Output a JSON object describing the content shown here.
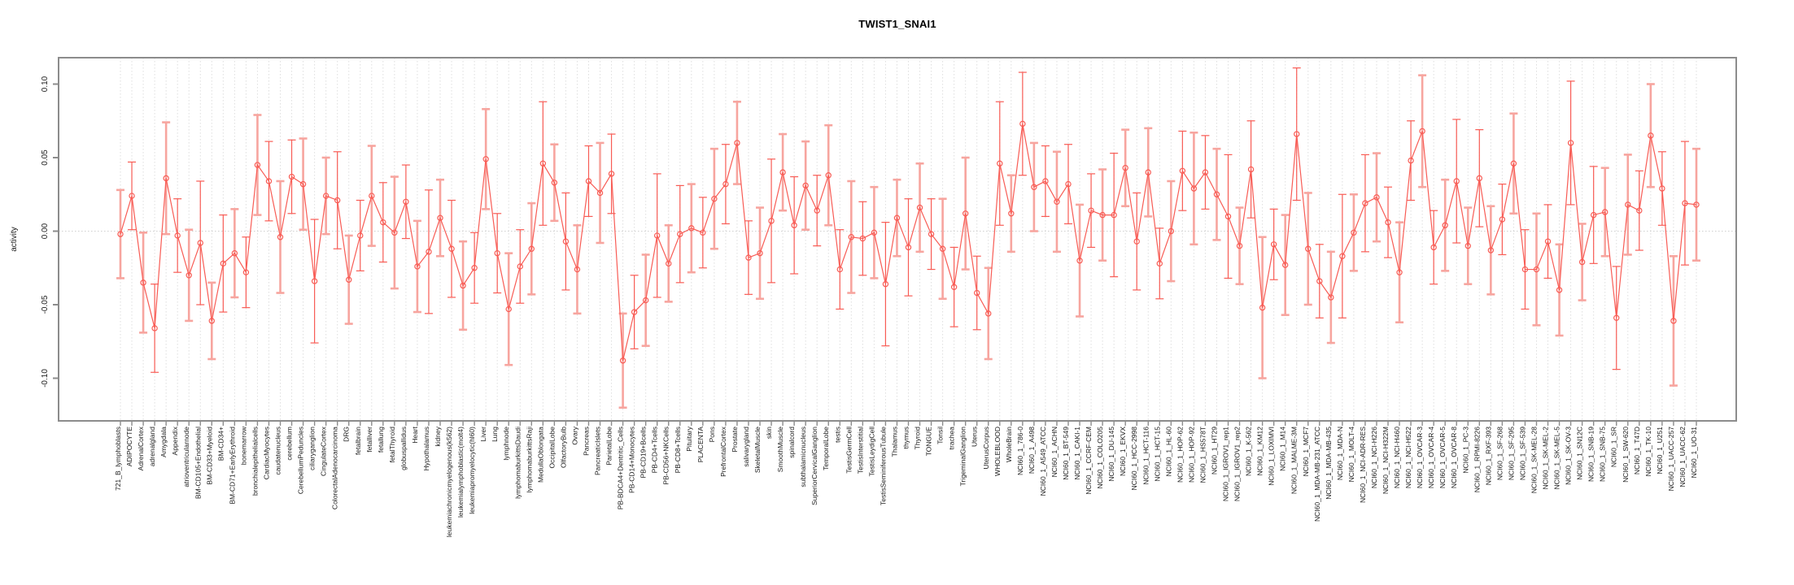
{
  "title": "TWIST1_SNAI1",
  "y_axis": {
    "label": "activity",
    "tick_labels": [
      "0.10",
      "0.05",
      "0.00",
      "-0.05",
      "-0.10"
    ],
    "ticks": [
      0.1,
      0.05,
      0.0,
      -0.05,
      -0.1
    ]
  },
  "chart_data": {
    "type": "line",
    "title": "TWIST1_SNAI1",
    "xlabel": "",
    "ylabel": "activity",
    "ylim": [
      -0.125,
      0.115
    ],
    "legend_position": "none",
    "grid": "vertical dashed gridline per category; dotted horizontal line at 0",
    "point_style": "open circles with error bars",
    "colors": {
      "series": "#f85c55",
      "error_bar_pale": "#f7a59f",
      "grid": "#dedede",
      "zero_line": "#cfcfcf",
      "frame": "#8c8c8c",
      "text": "#1a1a1a"
    },
    "categories": [
      "721_B_lymphoblasts",
      "ADIPOCYTE",
      "AdrenalCortex",
      "adrenalgland",
      "Amygdala",
      "Appendix",
      "atrioventricularnode",
      "BM-CD105+Endothelial",
      "BM-CD33+Myeloid",
      "BM-CD34+",
      "BM-CD71+EarlyErythroid",
      "bonemarrow",
      "bronchialepithelialcells",
      "CardiacMyocytes",
      "caudatenucleus",
      "cerebellum",
      "CerebellumPeduncles",
      "ciliaryganglion",
      "CingulateCortex",
      "ColorectalAdenocarcinoma",
      "DRG",
      "fetalbrain",
      "fetalliver",
      "fetallung",
      "fetalThyroid",
      "globuspallidus",
      "Heart",
      "Hypothalamus",
      "kidney",
      "leukemiachronicmyelogenous(k562)",
      "leukemialymphoblastic(molt4)",
      "leukemiapromyelocytic(hl60)",
      "Liver",
      "Lung",
      "lymphnode",
      "lymphomaburkittsDaudi",
      "lymphomaburkittsRaji",
      "MedullaOblongata",
      "OccipitalLobe",
      "OlfactoryBulb",
      "Ovary",
      "Pancreas",
      "PancreaticIslets",
      "ParietalLobe",
      "PB-BDCA4+Dentritic_Cells",
      "PB-CD14+Monocytes",
      "PB-CD19+Bcells",
      "PB-CD4+Tcells",
      "PB-CD56+NKCells",
      "PB-CD8+Tcells",
      "Pituitary",
      "PLACENTA",
      "Pons",
      "PrefrontalCortex",
      "Prostate",
      "salivarygland",
      "SkeletalMuscle",
      "skin",
      "SmoothMuscle",
      "spinalcord",
      "subthalamicnucleus",
      "SuperiorCervicalGanglion",
      "TemporalLobe",
      "testis",
      "TestisGermCell",
      "TestisInterstitial",
      "TestisLeydigCell",
      "TestisSeminiferousTubule",
      "Thalamus",
      "thymus",
      "Thyroid",
      "TONGUE",
      "Tonsil",
      "trachea",
      "TrigeminalGanglion",
      "Uterus",
      "UterusCorpus",
      "WHOLEBLOOD",
      "WholeBrain",
      "NCI60_1_786-0",
      "NCI60_1_A498",
      "NCI60_1_A549_ATCC",
      "NCI60_1_ACHN",
      "NCI60_1_BT-549",
      "NCI60_1_CAKI-1",
      "NCI60_1_CCRF-CEM",
      "NCI60_1_COLO205",
      "NCI60_1_DU-145",
      "NCI60_1_EKVX",
      "NCI60_1_HCC-2998",
      "NCI60_1_HCT-116",
      "NCI60_1_HCT-15",
      "NCI60_1_HL-60",
      "NCI60_1_HOP-62",
      "NCI60_1_HOP-92",
      "NCI60_1_HS578T",
      "NCI60_1_HT29",
      "NCI60_1_IGROV1_rep1",
      "NCI60_1_IGROV1_rep2",
      "NCI60_1_K-562",
      "NCI60_1_KM12",
      "NCI60_1_LOXIMVI",
      "NCI60_1_M14",
      "NCI60_1_MALME-3M",
      "NCI60_1_MCF7",
      "NCI60_1_MDA-MB-231_ATCC",
      "NCI60_1_MDA-MB-435",
      "NCI60_1_MDA-N",
      "NCI60_1_MOLT-4",
      "NCI60_1_NCI-ADR-RES",
      "NCI60_1_NCI-H226",
      "NCI60_1_NCI-H322M",
      "NCI60_1_NCI-H460",
      "NCI60_1_NCI-H522",
      "NCI60_1_OVCAR-3",
      "NCI60_1_OVCAR-4",
      "NCI60_1_OVCAR-5",
      "NCI60_1_OVCAR-8",
      "NCI60_1_PC-3",
      "NCI60_1_RPMI-8226",
      "NCI60_1_RXF-393",
      "NCI60_1_SF-268",
      "NCI60_1_SF-295",
      "NCI60_1_SF-539",
      "NCI60_1_SK-MEL-28",
      "NCI60_1_SK-MEL-2",
      "NCI60_1_SK-MEL-5",
      "NCI60_1_SK-OV-3",
      "NCI60_1_SN12C",
      "NCI60_1_SNB-19",
      "NCI60_1_SNB-75",
      "NCI60_1_SR",
      "NCI60_1_SW-620",
      "NCI60_1_T47D",
      "NCI60_1_TK-10",
      "NCI60_1_U251",
      "NCI60_1_UACC-257",
      "NCI60_1_UACC-62",
      "NCI60_1_UO-31"
    ],
    "values": [
      -0.002,
      0.024,
      -0.035,
      -0.066,
      0.036,
      -0.003,
      -0.03,
      -0.008,
      -0.061,
      -0.022,
      -0.015,
      -0.028,
      0.045,
      0.034,
      -0.004,
      0.037,
      0.032,
      -0.034,
      0.024,
      0.021,
      -0.033,
      -0.003,
      0.024,
      0.006,
      -0.001,
      0.02,
      -0.024,
      -0.014,
      0.009,
      -0.012,
      -0.037,
      -0.025,
      0.049,
      -0.015,
      -0.053,
      -0.024,
      -0.012,
      0.046,
      0.033,
      -0.007,
      -0.026,
      0.034,
      0.026,
      0.039,
      -0.088,
      -0.055,
      -0.047,
      -0.003,
      -0.022,
      -0.002,
      0.002,
      -0.001,
      0.022,
      0.032,
      0.06,
      -0.018,
      -0.015,
      0.007,
      0.04,
      0.004,
      0.031,
      0.014,
      0.038,
      -0.026,
      -0.004,
      -0.005,
      -0.001,
      -0.036,
      0.009,
      -0.011,
      0.016,
      -0.002,
      -0.012,
      -0.038,
      0.012,
      -0.042,
      -0.056,
      0.046,
      0.012,
      0.073,
      0.03,
      0.034,
      0.02,
      0.032,
      -0.02,
      0.014,
      0.011,
      0.011,
      0.043,
      -0.007,
      0.04,
      -0.022,
      0.0,
      0.041,
      0.029,
      0.04,
      0.025,
      0.01,
      -0.01,
      0.042,
      -0.052,
      -0.009,
      -0.023,
      0.066,
      -0.012,
      -0.034,
      -0.045,
      -0.017,
      -0.001,
      0.019,
      0.023,
      0.006,
      -0.028,
      0.048,
      0.068,
      -0.011,
      0.004,
      0.034,
      -0.01,
      0.036,
      -0.013,
      0.008,
      0.046,
      -0.026,
      -0.026,
      -0.007,
      -0.04,
      0.06,
      -0.021,
      0.011,
      0.013,
      -0.059,
      0.018,
      0.014,
      0.065,
      0.029,
      -0.061,
      0.019,
      0.018
    ],
    "error": [
      0.03,
      0.023,
      0.034,
      0.03,
      0.038,
      0.025,
      0.031,
      0.042,
      0.026,
      0.033,
      0.03,
      0.024,
      0.034,
      0.027,
      0.038,
      0.025,
      0.031,
      0.042,
      0.026,
      0.033,
      0.03,
      0.024,
      0.034,
      0.027,
      0.038,
      0.025,
      0.031,
      0.042,
      0.026,
      0.033,
      0.03,
      0.024,
      0.034,
      0.027,
      0.038,
      0.025,
      0.031,
      0.042,
      0.026,
      0.033,
      0.03,
      0.024,
      0.034,
      0.027,
      0.032,
      0.025,
      0.031,
      0.042,
      0.026,
      0.033,
      0.03,
      0.024,
      0.034,
      0.027,
      0.028,
      0.025,
      0.031,
      0.042,
      0.026,
      0.033,
      0.03,
      0.024,
      0.034,
      0.027,
      0.038,
      0.025,
      0.031,
      0.042,
      0.026,
      0.033,
      0.03,
      0.024,
      0.034,
      0.027,
      0.038,
      0.025,
      0.031,
      0.042,
      0.026,
      0.035,
      0.03,
      0.024,
      0.034,
      0.027,
      0.038,
      0.025,
      0.031,
      0.042,
      0.026,
      0.033,
      0.03,
      0.024,
      0.034,
      0.027,
      0.038,
      0.025,
      0.031,
      0.042,
      0.026,
      0.033,
      0.048,
      0.024,
      0.034,
      0.045,
      0.038,
      0.025,
      0.031,
      0.042,
      0.026,
      0.033,
      0.03,
      0.024,
      0.034,
      0.027,
      0.038,
      0.025,
      0.031,
      0.042,
      0.026,
      0.033,
      0.03,
      0.024,
      0.034,
      0.027,
      0.038,
      0.025,
      0.031,
      0.042,
      0.026,
      0.033,
      0.03,
      0.035,
      0.034,
      0.027,
      0.035,
      0.025,
      0.044,
      0.042,
      0.038
    ]
  }
}
